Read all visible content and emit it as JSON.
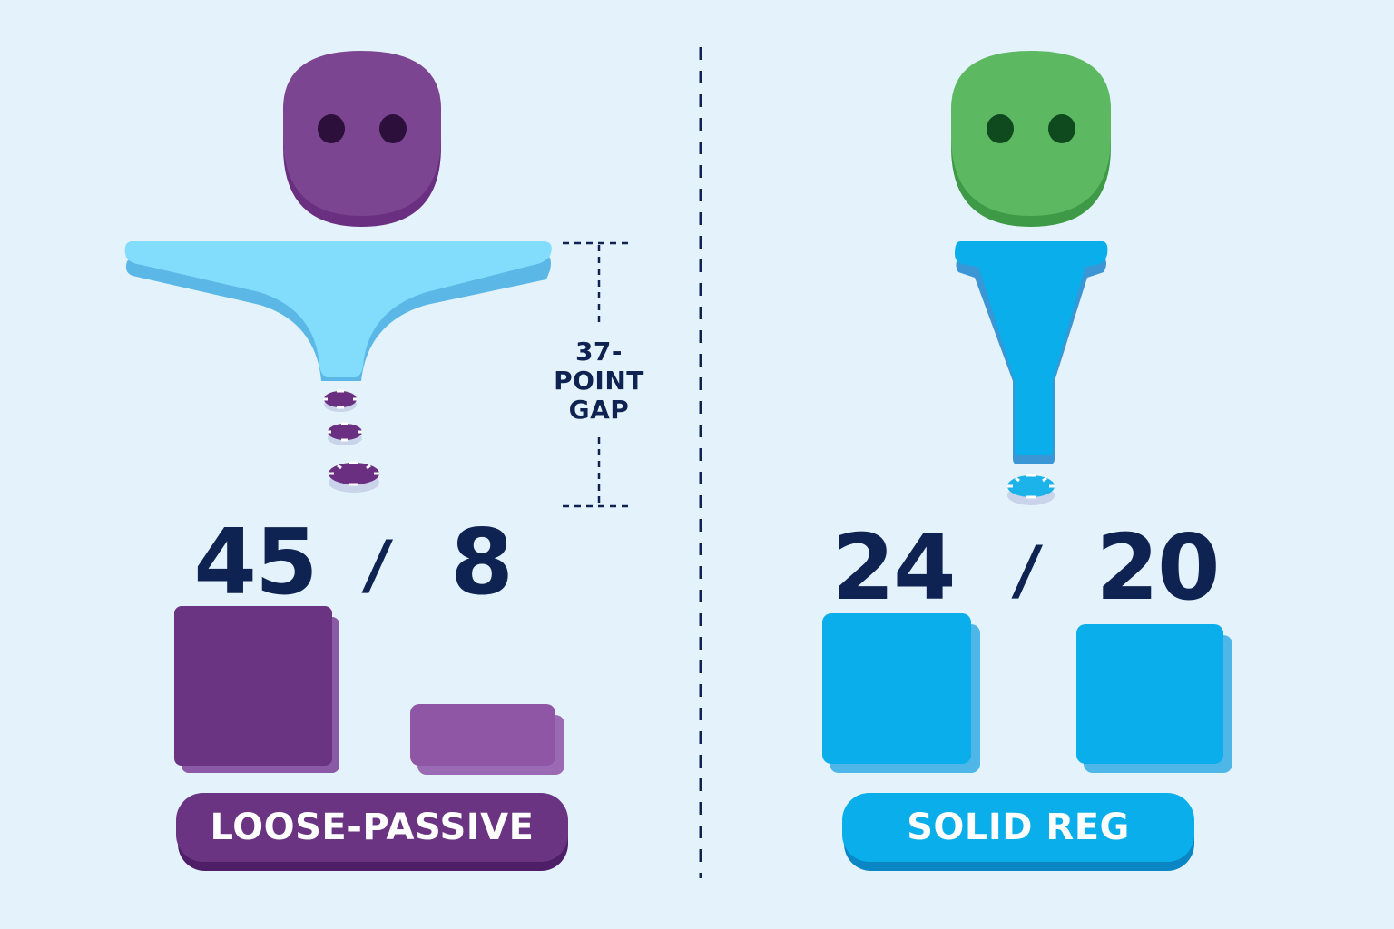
{
  "left": {
    "stat_a": "45",
    "separator": "/",
    "stat_b": "8",
    "label": "LOOSE-PASSIVE",
    "bar_values": [
      45,
      8
    ]
  },
  "right": {
    "stat_a": "24",
    "separator": "/",
    "stat_b": "20",
    "label": "SOLID REG",
    "bar_values": [
      24,
      20
    ]
  },
  "gap_annotation": {
    "line1": "37-",
    "line2": "POINT",
    "line3": "GAP"
  },
  "colors": {
    "background": "#e4f3fb",
    "purple": "#7a3f92",
    "purple_light": "#9a5aaa",
    "green": "#5db862",
    "blue": "#0aaeea",
    "funnel_light_blue": "#82dcfb",
    "dark_navy": "#0f2352"
  }
}
